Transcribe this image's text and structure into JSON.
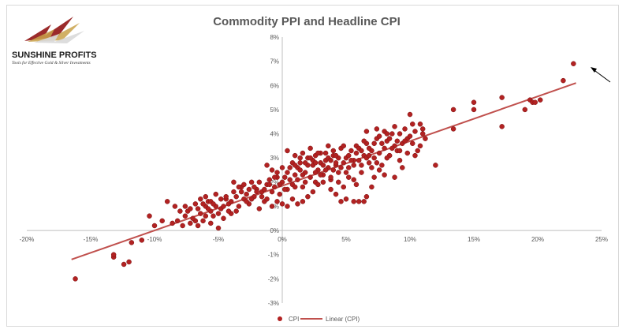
{
  "chart_data": {
    "type": "scatter",
    "title": "Commodity PPI and Headline CPI",
    "xlabel": "",
    "ylabel": "",
    "xlim": [
      -0.2,
      0.25
    ],
    "ylim": [
      -0.03,
      0.08
    ],
    "x_ticks": [
      -0.2,
      -0.15,
      -0.1,
      -0.05,
      0.0,
      0.05,
      0.1,
      0.15,
      0.2,
      0.25
    ],
    "y_ticks": [
      -0.03,
      -0.02,
      -0.01,
      0.0,
      0.01,
      0.02,
      0.03,
      0.04,
      0.05,
      0.06,
      0.07,
      0.08
    ],
    "x_tick_labels": [
      "-20%",
      "-15%",
      "-10%",
      "-5%",
      "0%",
      "5%",
      "10%",
      "15%",
      "20%",
      "25%"
    ],
    "y_tick_labels": [
      "-3%",
      "-2%",
      "-1%",
      "0%",
      "1%",
      "2%",
      "3%",
      "4%",
      "5%",
      "6%",
      "7%",
      "8%"
    ],
    "grid": false,
    "legend_position": "bottom",
    "series": [
      {
        "name": "CPI",
        "color": "#b22222",
        "points": [
          [
            -0.162,
            -0.02
          ],
          [
            -0.132,
            -0.011
          ],
          [
            -0.132,
            -0.01
          ],
          [
            -0.124,
            -0.014
          ],
          [
            -0.12,
            -0.013
          ],
          [
            -0.118,
            -0.005
          ],
          [
            -0.11,
            -0.004
          ],
          [
            -0.104,
            0.006
          ],
          [
            -0.1,
            0.002
          ],
          [
            -0.094,
            0.004
          ],
          [
            -0.09,
            0.012
          ],
          [
            -0.086,
            0.003
          ],
          [
            -0.082,
            0.004
          ],
          [
            -0.078,
            0.002
          ],
          [
            -0.076,
            0.006
          ],
          [
            -0.074,
            0.008
          ],
          [
            -0.072,
            0.003
          ],
          [
            -0.068,
            0.004
          ],
          [
            -0.066,
            0.002
          ],
          [
            -0.064,
            0.007
          ],
          [
            -0.062,
            0.004
          ],
          [
            -0.06,
            0.01
          ],
          [
            -0.058,
            0.012
          ],
          [
            -0.056,
            0.003
          ],
          [
            -0.054,
            0.006
          ],
          [
            -0.052,
            0.015
          ],
          [
            -0.05,
            0.001
          ],
          [
            -0.048,
            0.009
          ],
          [
            -0.046,
            0.005
          ],
          [
            -0.044,
            0.013
          ],
          [
            -0.042,
            0.011
          ],
          [
            -0.04,
            0.007
          ],
          [
            -0.038,
            0.016
          ],
          [
            -0.036,
            0.008
          ],
          [
            -0.034,
            0.01
          ],
          [
            -0.032,
            0.018
          ],
          [
            -0.03,
            0.013
          ],
          [
            -0.028,
            0.015
          ],
          [
            -0.026,
            0.011
          ],
          [
            -0.024,
            0.02
          ],
          [
            -0.022,
            0.014
          ],
          [
            -0.02,
            0.017
          ],
          [
            -0.018,
            0.009
          ],
          [
            -0.016,
            0.016
          ],
          [
            -0.014,
            0.012
          ],
          [
            -0.012,
            0.019
          ],
          [
            -0.01,
            0.021
          ],
          [
            -0.008,
            0.016
          ],
          [
            -0.006,
            0.018
          ],
          [
            -0.004,
            0.024
          ],
          [
            -0.002,
            0.015
          ],
          [
            0.0,
            0.02
          ],
          [
            0.002,
            0.022
          ],
          [
            0.004,
            0.017
          ],
          [
            0.006,
            0.026
          ],
          [
            0.008,
            0.019
          ],
          [
            0.01,
            0.023
          ],
          [
            0.012,
            0.021
          ],
          [
            0.014,
            0.028
          ],
          [
            0.016,
            0.018
          ],
          [
            0.018,
            0.024
          ],
          [
            0.02,
            0.03
          ],
          [
            0.022,
            0.022
          ],
          [
            0.024,
            0.027
          ],
          [
            0.026,
            0.02
          ],
          [
            0.028,
            0.025
          ],
          [
            0.03,
            0.032
          ],
          [
            0.032,
            0.023
          ],
          [
            0.034,
            0.029
          ],
          [
            0.036,
            0.026
          ],
          [
            0.038,
            0.021
          ],
          [
            0.04,
            0.031
          ],
          [
            0.042,
            0.027
          ],
          [
            0.044,
            0.024
          ],
          [
            0.046,
            0.034
          ],
          [
            0.048,
            0.028
          ],
          [
            0.05,
            0.03
          ],
          [
            0.052,
            0.022
          ],
          [
            0.054,
            0.033
          ],
          [
            0.056,
            0.027
          ],
          [
            0.058,
            0.035
          ],
          [
            0.06,
            0.029
          ],
          [
            0.062,
            0.024
          ],
          [
            0.064,
            0.031
          ],
          [
            0.066,
            0.036
          ],
          [
            0.068,
            0.028
          ],
          [
            0.07,
            0.033
          ],
          [
            0.072,
            0.03
          ],
          [
            0.074,
            0.038
          ],
          [
            0.076,
            0.032
          ],
          [
            0.078,
            0.027
          ],
          [
            0.08,
            0.034
          ],
          [
            0.082,
            0.037
          ],
          [
            0.084,
            0.031
          ],
          [
            0.086,
            0.04
          ],
          [
            0.088,
            0.035
          ],
          [
            0.09,
            0.033
          ],
          [
            0.092,
            0.029
          ],
          [
            0.094,
            0.036
          ],
          [
            0.096,
            0.042
          ],
          [
            0.098,
            0.038
          ],
          [
            0.1,
            0.048
          ],
          [
            0.102,
            0.036
          ],
          [
            0.104,
            0.041
          ],
          [
            0.106,
            0.033
          ],
          [
            0.108,
            0.044
          ],
          [
            0.11,
            0.04
          ],
          [
            0.112,
            0.038
          ],
          [
            0.12,
            0.027
          ],
          [
            0.134,
            0.05
          ],
          [
            0.134,
            0.042
          ],
          [
            0.15,
            0.05
          ],
          [
            0.15,
            0.053
          ],
          [
            0.172,
            0.055
          ],
          [
            0.172,
            0.043
          ],
          [
            0.19,
            0.05
          ],
          [
            0.194,
            0.054
          ],
          [
            0.196,
            0.053
          ],
          [
            0.198,
            0.053
          ],
          [
            0.202,
            0.054
          ],
          [
            0.22,
            0.062
          ],
          [
            0.228,
            0.069
          ],
          [
            0.004,
            0.033
          ],
          [
            0.01,
            0.031
          ],
          [
            0.016,
            0.032
          ],
          [
            0.022,
            0.034
          ],
          [
            0.026,
            0.031
          ],
          [
            0.03,
            0.028
          ],
          [
            0.034,
            0.032
          ],
          [
            0.036,
            0.035
          ],
          [
            0.04,
            0.025
          ],
          [
            0.044,
            0.02
          ],
          [
            0.048,
            0.018
          ],
          [
            0.052,
            0.026
          ],
          [
            0.056,
            0.021
          ],
          [
            0.058,
            0.019
          ],
          [
            0.06,
            0.012
          ],
          [
            0.064,
            0.012
          ],
          [
            0.066,
            0.014
          ],
          [
            0.07,
            0.018
          ],
          [
            0.072,
            0.022
          ],
          [
            0.076,
            0.025
          ],
          [
            0.08,
            0.023
          ],
          [
            0.084,
            0.031
          ],
          [
            0.088,
            0.022
          ],
          [
            0.092,
            0.04
          ],
          [
            0.094,
            0.026
          ],
          [
            0.098,
            0.032
          ],
          [
            0.104,
            0.031
          ],
          [
            0.108,
            0.035
          ],
          [
            0.056,
            0.012
          ],
          [
            0.05,
            0.013
          ],
          [
            0.046,
            0.012
          ],
          [
            0.042,
            0.015
          ],
          [
            0.038,
            0.017
          ],
          [
            0.032,
            0.02
          ],
          [
            0.028,
            0.019
          ],
          [
            0.024,
            0.016
          ],
          [
            0.02,
            0.014
          ],
          [
            0.016,
            0.012
          ],
          [
            0.012,
            0.011
          ],
          [
            0.008,
            0.013
          ],
          [
            0.004,
            0.01
          ],
          [
            0.0,
            0.011
          ],
          [
            -0.004,
            0.012
          ],
          [
            -0.008,
            0.01
          ],
          [
            -0.012,
            0.013
          ],
          [
            -0.016,
            0.014
          ],
          [
            -0.02,
            0.016
          ],
          [
            -0.024,
            0.013
          ],
          [
            -0.028,
            0.012
          ],
          [
            -0.032,
            0.016
          ],
          [
            -0.036,
            0.014
          ],
          [
            -0.04,
            0.012
          ],
          [
            -0.044,
            0.014
          ],
          [
            -0.048,
            0.013
          ],
          [
            -0.052,
            0.01
          ],
          [
            -0.056,
            0.012
          ],
          [
            -0.06,
            0.014
          ],
          [
            -0.064,
            0.013
          ],
          [
            -0.068,
            0.011
          ],
          [
            -0.072,
            0.009
          ],
          [
            -0.076,
            0.01
          ],
          [
            -0.08,
            0.008
          ],
          [
            -0.084,
            0.01
          ],
          [
            -0.012,
            0.027
          ],
          [
            -0.008,
            0.025
          ],
          [
            -0.004,
            0.022
          ],
          [
            0.0,
            0.026
          ],
          [
            0.004,
            0.024
          ],
          [
            0.008,
            0.028
          ],
          [
            0.012,
            0.026
          ],
          [
            0.016,
            0.023
          ],
          [
            0.02,
            0.027
          ],
          [
            0.024,
            0.029
          ],
          [
            0.028,
            0.032
          ],
          [
            0.032,
            0.027
          ],
          [
            0.036,
            0.03
          ],
          [
            0.04,
            0.033
          ],
          [
            0.044,
            0.03
          ],
          [
            0.048,
            0.035
          ],
          [
            0.052,
            0.031
          ],
          [
            0.056,
            0.029
          ],
          [
            0.06,
            0.034
          ],
          [
            0.064,
            0.037
          ],
          [
            0.068,
            0.034
          ],
          [
            0.072,
            0.036
          ],
          [
            0.076,
            0.039
          ],
          [
            0.08,
            0.041
          ],
          [
            0.084,
            0.038
          ],
          [
            0.088,
            0.043
          ],
          [
            0.066,
            0.041
          ],
          [
            0.074,
            0.042
          ],
          [
            0.082,
            0.04
          ],
          [
            0.09,
            0.037
          ],
          [
            0.018,
            0.02
          ],
          [
            0.014,
            0.025
          ],
          [
            0.01,
            0.018
          ],
          [
            0.006,
            0.021
          ],
          [
            0.002,
            0.017
          ],
          [
            -0.002,
            0.019
          ],
          [
            -0.006,
            0.022
          ],
          [
            -0.01,
            0.019
          ],
          [
            -0.014,
            0.017
          ],
          [
            -0.018,
            0.02
          ],
          [
            -0.022,
            0.018
          ],
          [
            -0.026,
            0.017
          ],
          [
            -0.03,
            0.019
          ],
          [
            -0.034,
            0.018
          ],
          [
            -0.038,
            0.02
          ],
          [
            0.038,
            0.022
          ],
          [
            0.042,
            0.028
          ],
          [
            0.046,
            0.026
          ],
          [
            0.05,
            0.024
          ],
          [
            0.054,
            0.029
          ],
          [
            0.058,
            0.032
          ],
          [
            0.062,
            0.027
          ],
          [
            0.066,
            0.03
          ],
          [
            0.07,
            0.026
          ],
          [
            0.074,
            0.028
          ],
          [
            0.026,
            0.024
          ],
          [
            0.03,
            0.023
          ],
          [
            0.034,
            0.025
          ],
          [
            0.038,
            0.029
          ],
          [
            0.042,
            0.031
          ],
          [
            0.01,
            0.027
          ],
          [
            0.014,
            0.03
          ],
          [
            0.018,
            0.028
          ],
          [
            0.022,
            0.03
          ],
          [
            0.026,
            0.028
          ],
          [
            0.062,
            0.033
          ],
          [
            0.068,
            0.031
          ],
          [
            0.078,
            0.036
          ],
          [
            0.086,
            0.034
          ],
          [
            0.096,
            0.037
          ],
          [
            0.102,
            0.044
          ],
          [
            0.11,
            0.042
          ],
          [
            0.1,
            0.039
          ],
          [
            0.092,
            0.033
          ],
          [
            0.082,
            0.03
          ],
          [
            -0.06,
            0.006
          ],
          [
            -0.056,
            0.008
          ],
          [
            -0.05,
            0.007
          ],
          [
            -0.046,
            0.01
          ],
          [
            -0.042,
            0.008
          ],
          [
            -0.07,
            0.005
          ],
          [
            -0.066,
            0.009
          ],
          [
            -0.062,
            0.011
          ],
          [
            -0.058,
            0.009
          ],
          [
            -0.054,
            0.011
          ]
        ]
      },
      {
        "name": "Linear (CPI)",
        "type": "line",
        "color": "#c0504d",
        "points": [
          [
            -0.165,
            -0.012
          ],
          [
            0.23,
            0.061
          ]
        ]
      }
    ]
  },
  "logo": {
    "name": "SUNSHINE PROFITS",
    "tagline": "Tools for Effective Gold & Silver Investments"
  },
  "annotation": {
    "arrow": "arrow pointing to highest point"
  }
}
